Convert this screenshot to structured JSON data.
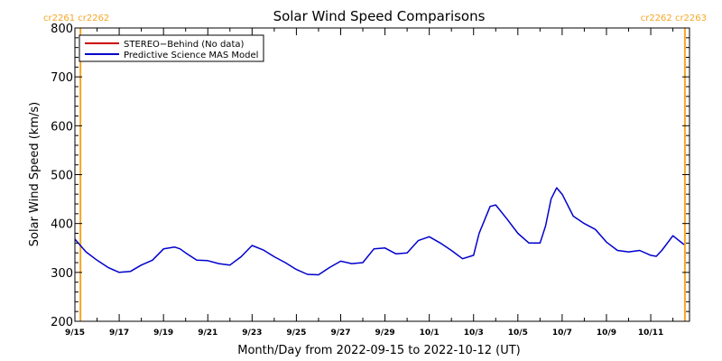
{
  "chart_data": {
    "type": "line",
    "title": "Solar Wind Speed Comparisons",
    "xlabel": "Month/Day from 2022-09-15 to 2022-10-12 (UT)",
    "ylabel": "Solar Wind Speed (km/s)",
    "ylim": [
      200,
      800
    ],
    "y_ticks": [
      200,
      300,
      400,
      500,
      600,
      700,
      800
    ],
    "xlim": [
      "2022-09-15",
      "2022-10-12T18:00"
    ],
    "x_ticks": [
      {
        "date": "2022-09-15",
        "label": "9/15"
      },
      {
        "date": "2022-09-17",
        "label": "9/17"
      },
      {
        "date": "2022-09-19",
        "label": "9/19"
      },
      {
        "date": "2022-09-21",
        "label": "9/21"
      },
      {
        "date": "2022-09-23",
        "label": "9/23"
      },
      {
        "date": "2022-09-25",
        "label": "9/25"
      },
      {
        "date": "2022-09-27",
        "label": "9/27"
      },
      {
        "date": "2022-09-29",
        "label": "9/29"
      },
      {
        "date": "2022-10-01",
        "label": "10/1"
      },
      {
        "date": "2022-10-03",
        "label": "10/3"
      },
      {
        "date": "2022-10-05",
        "label": "10/5"
      },
      {
        "date": "2022-10-07",
        "label": "10/7"
      },
      {
        "date": "2022-10-09",
        "label": "10/9"
      },
      {
        "date": "2022-10-11",
        "label": "10/11"
      }
    ],
    "grid": false,
    "legend_position": "top-left",
    "carrington_markers": [
      {
        "date": "2022-09-15T06:00",
        "label": "cr2261 cr2262",
        "align": "left",
        "color": "#f5a623"
      },
      {
        "date": "2022-10-12T13:00",
        "label": "cr2262 cr2263",
        "align": "right",
        "color": "#f5a623"
      }
    ],
    "series": [
      {
        "name": "STEREO−Behind (No data)",
        "color": "#cc0000",
        "x": [],
        "y": []
      },
      {
        "name": "Predictive Science MAS Model",
        "color": "#0000cc",
        "x": [
          "2022-09-15T00:00",
          "2022-09-15T12:00",
          "2022-09-16T00:00",
          "2022-09-16T12:00",
          "2022-09-17T00:00",
          "2022-09-17T12:00",
          "2022-09-18T00:00",
          "2022-09-18T12:00",
          "2022-09-19T00:00",
          "2022-09-19T12:00",
          "2022-09-19T18:00",
          "2022-09-20T00:00",
          "2022-09-20T12:00",
          "2022-09-21T00:00",
          "2022-09-21T12:00",
          "2022-09-22T00:00",
          "2022-09-22T12:00",
          "2022-09-23T00:00",
          "2022-09-23T12:00",
          "2022-09-24T00:00",
          "2022-09-24T12:00",
          "2022-09-25T00:00",
          "2022-09-25T12:00",
          "2022-09-26T00:00",
          "2022-09-26T12:00",
          "2022-09-27T00:00",
          "2022-09-27T12:00",
          "2022-09-28T00:00",
          "2022-09-28T12:00",
          "2022-09-29T00:00",
          "2022-09-29T12:00",
          "2022-09-30T00:00",
          "2022-09-30T12:00",
          "2022-10-01T00:00",
          "2022-10-01T12:00",
          "2022-10-02T00:00",
          "2022-10-02T12:00",
          "2022-10-03T00:00",
          "2022-10-03T06:00",
          "2022-10-03T18:00",
          "2022-10-04T00:00",
          "2022-10-04T12:00",
          "2022-10-05T00:00",
          "2022-10-05T12:00",
          "2022-10-06T00:00",
          "2022-10-06T06:00",
          "2022-10-06T12:00",
          "2022-10-06T18:00",
          "2022-10-07T00:00",
          "2022-10-07T12:00",
          "2022-10-08T00:00",
          "2022-10-08T12:00",
          "2022-10-09T00:00",
          "2022-10-09T12:00",
          "2022-10-10T00:00",
          "2022-10-10T12:00",
          "2022-10-11T00:00",
          "2022-10-11T06:00",
          "2022-10-11T12:00",
          "2022-10-12T00:00",
          "2022-10-12T12:00"
        ],
        "y": [
          368,
          342,
          325,
          310,
          300,
          302,
          315,
          325,
          348,
          352,
          348,
          340,
          325,
          324,
          318,
          315,
          332,
          355,
          346,
          332,
          320,
          306,
          296,
          295,
          310,
          323,
          318,
          320,
          348,
          350,
          338,
          340,
          365,
          373,
          360,
          345,
          328,
          335,
          380,
          435,
          438,
          410,
          380,
          360,
          360,
          395,
          450,
          473,
          460,
          415,
          400,
          388,
          362,
          345,
          342,
          345,
          335,
          333,
          345,
          375,
          357
        ]
      }
    ]
  }
}
